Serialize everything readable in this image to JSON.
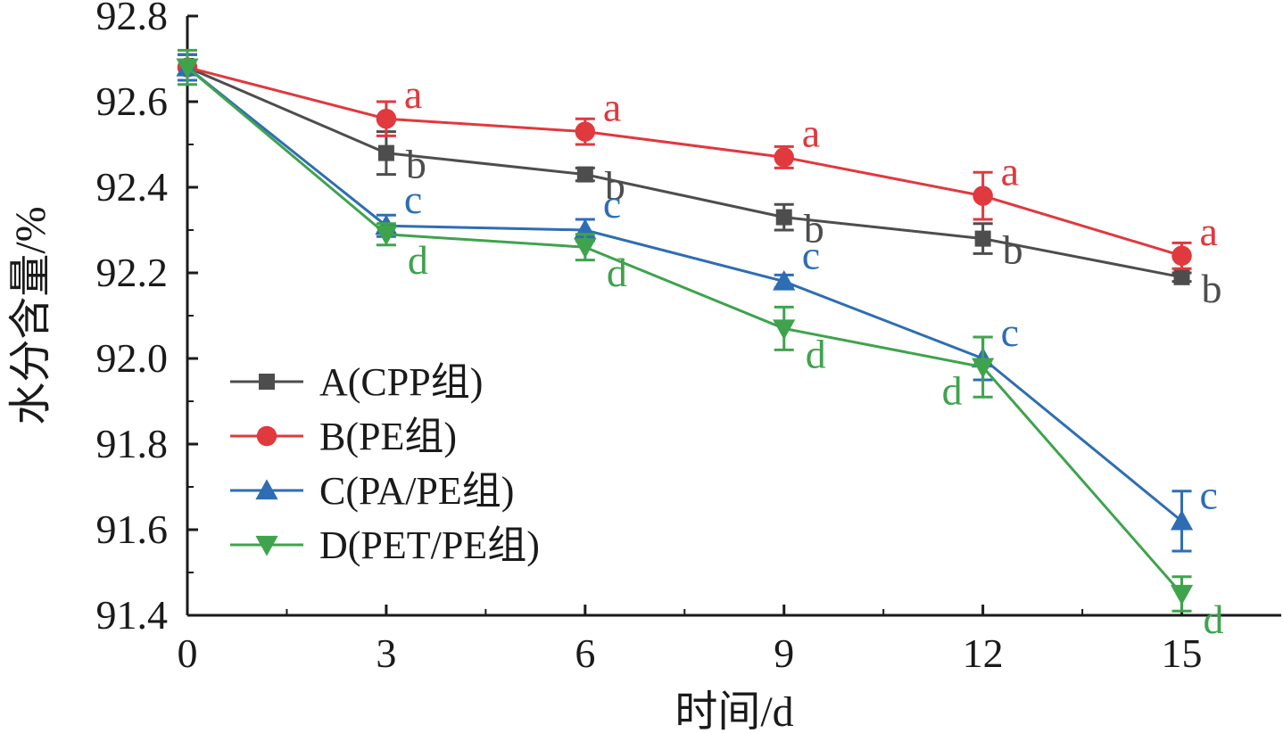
{
  "chart_data": {
    "type": "line",
    "xlabel": "时间/d",
    "ylabel": "水分含量/%",
    "x": [
      0,
      3,
      6,
      9,
      12,
      15
    ],
    "xlim": [
      0,
      16.5
    ],
    "ylim": [
      91.4,
      92.8
    ],
    "x_ticks": [
      "0",
      "3",
      "6",
      "9",
      "12",
      "15"
    ],
    "y_ticks": [
      "91.4",
      "91.6",
      "91.8",
      "92.0",
      "92.2",
      "92.4",
      "92.6",
      "92.8"
    ],
    "grid": false,
    "legend_position": "lower-left",
    "series": [
      {
        "name": "A(CPP组)",
        "color": "#4d4d4d",
        "marker": "square",
        "values": [
          92.68,
          92.48,
          92.43,
          92.33,
          92.28,
          92.19
        ],
        "errors": [
          0.03,
          0.05,
          0.015,
          0.03,
          0.035,
          0.01
        ],
        "sig_labels": [
          "",
          "b",
          "b",
          "b",
          "b",
          "b"
        ]
      },
      {
        "name": "B(PE组)",
        "color": "#e0393e",
        "marker": "circle",
        "values": [
          92.68,
          92.56,
          92.53,
          92.47,
          92.38,
          92.24
        ],
        "errors": [
          0.03,
          0.04,
          0.03,
          0.025,
          0.055,
          0.03
        ],
        "sig_labels": [
          "",
          "a",
          "a",
          "a",
          "a",
          "a"
        ]
      },
      {
        "name": "C(PA/PE组)",
        "color": "#2e6db4",
        "marker": "triangle-up",
        "values": [
          92.68,
          92.31,
          92.3,
          92.18,
          92.0,
          91.62
        ],
        "errors": [
          0.03,
          0.025,
          0.025,
          0.015,
          0.05,
          0.07
        ],
        "sig_labels": [
          "",
          "c",
          "c",
          "c",
          "c",
          "c"
        ]
      },
      {
        "name": "D(PET/PE组)",
        "color": "#3fa34d",
        "marker": "triangle-down",
        "values": [
          92.68,
          92.29,
          92.26,
          92.07,
          91.98,
          91.45
        ],
        "errors": [
          0.04,
          0.025,
          0.03,
          0.05,
          0.07,
          0.04
        ],
        "sig_labels": [
          "",
          "d",
          "d",
          "d",
          "d",
          "d"
        ]
      }
    ]
  }
}
